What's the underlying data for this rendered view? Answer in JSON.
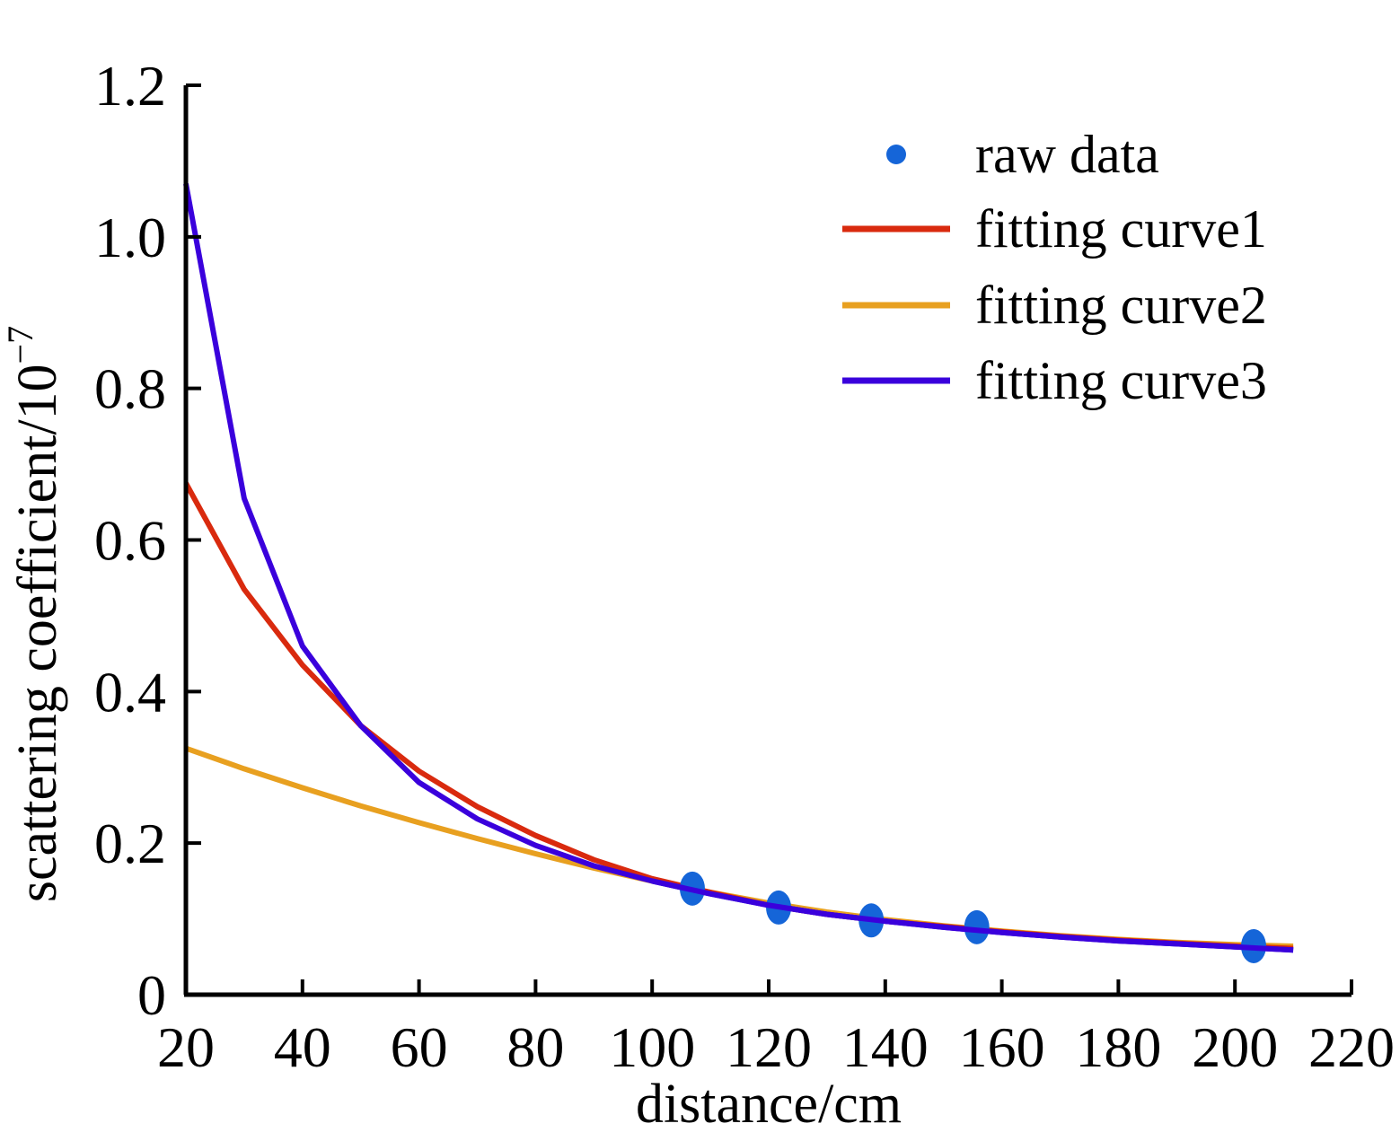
{
  "chart_data": {
    "type": "line",
    "title": "",
    "xlabel": "distance/cm",
    "ylabel": "scattering coefficient/10",
    "ylabel_superscript": "−7",
    "xlim": [
      20,
      220
    ],
    "ylim": [
      0,
      1.2
    ],
    "grid": false,
    "legend_position": "top-right",
    "x_ticks": [
      20,
      40,
      60,
      80,
      100,
      120,
      140,
      160,
      180,
      200,
      220
    ],
    "x_tick_labels": [
      "20",
      "40",
      "60",
      "80",
      "100",
      "120",
      "140",
      "160",
      "180",
      "200",
      "220"
    ],
    "y_ticks": [
      0,
      0.2,
      0.4,
      0.6,
      0.8,
      1.0,
      1.2
    ],
    "y_tick_labels": [
      "0",
      "0.2",
      "0.4",
      "0.6",
      "0.8",
      "1.0",
      "1.2"
    ],
    "series": [
      {
        "name": "raw data",
        "kind": "scatter",
        "color": "#1565d8",
        "x": [
          106.9,
          121.7,
          137.6,
          155.7,
          203.2
        ],
        "y": [
          0.14,
          0.115,
          0.098,
          0.089,
          0.064
        ]
      },
      {
        "name": "fitting curve1",
        "kind": "line",
        "color": "#d92a0e",
        "x": [
          20,
          30,
          40,
          50,
          60,
          70,
          80,
          90,
          100,
          110,
          120,
          130,
          140,
          150,
          160,
          170,
          180,
          190,
          200,
          210
        ],
        "y": [
          0.675,
          0.535,
          0.435,
          0.355,
          0.295,
          0.248,
          0.21,
          0.178,
          0.153,
          0.135,
          0.118,
          0.106,
          0.097,
          0.09,
          0.083,
          0.077,
          0.072,
          0.068,
          0.064,
          0.061
        ]
      },
      {
        "name": "fitting curve2",
        "kind": "line",
        "color": "#e8a020",
        "x": [
          20,
          30,
          40,
          50,
          60,
          70,
          80,
          90,
          100,
          110,
          120,
          130,
          140,
          150,
          160,
          170,
          180,
          190,
          200,
          210
        ],
        "y": [
          0.325,
          0.298,
          0.273,
          0.249,
          0.227,
          0.206,
          0.186,
          0.167,
          0.15,
          0.135,
          0.121,
          0.109,
          0.099,
          0.091,
          0.084,
          0.078,
          0.073,
          0.069,
          0.066,
          0.064
        ]
      },
      {
        "name": "fitting curve3",
        "kind": "line",
        "color": "#3a00dc",
        "x": [
          20,
          30,
          40,
          50,
          60,
          70,
          80,
          90,
          100,
          110,
          120,
          130,
          140,
          150,
          160,
          170,
          180,
          190,
          200,
          210
        ],
        "y": [
          1.07,
          0.655,
          0.46,
          0.355,
          0.28,
          0.232,
          0.197,
          0.17,
          0.15,
          0.133,
          0.118,
          0.106,
          0.097,
          0.089,
          0.082,
          0.076,
          0.071,
          0.067,
          0.063,
          0.059
        ]
      }
    ]
  }
}
